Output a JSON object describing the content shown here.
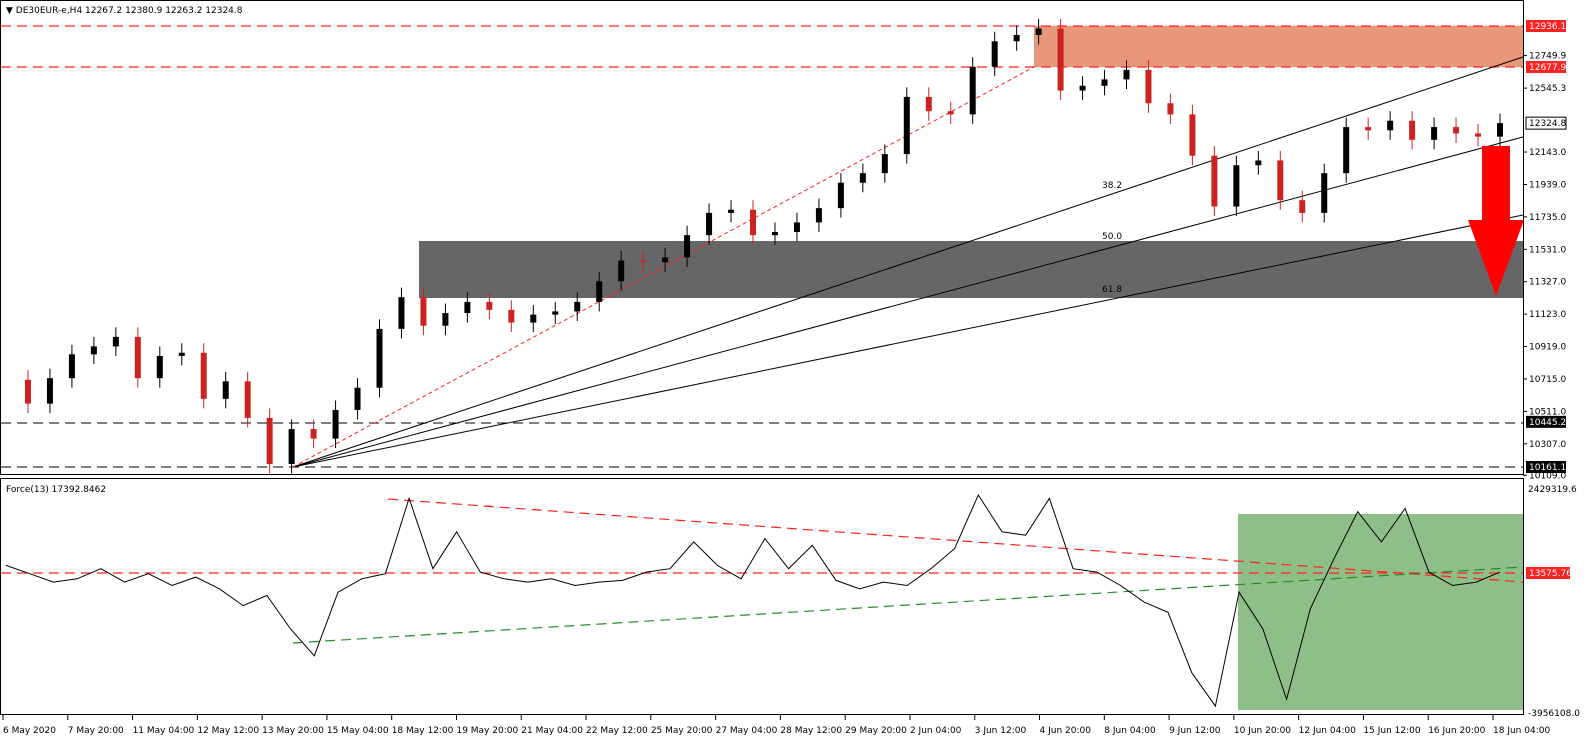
{
  "header": {
    "symbol": "DE30EUR-e,H4",
    "ohlc": "12267.2 12380.9 12263.2 12324.8"
  },
  "indicator": {
    "title": "Force(13) 17392.8462",
    "axis_labels": [
      "2429319.6",
      "13575.76",
      "-3956108.0"
    ]
  },
  "colors": {
    "bull": "#000000",
    "bear": "#cc2222",
    "resistance_zone": "#e8967a",
    "support_zone": "#666666",
    "force_zone": "#8fbf88",
    "arrow": "#ff0000",
    "dashed_red": "#ff2222",
    "dashed_green": "#2a8a2a"
  },
  "chart_data": [
    {
      "type": "candlestick",
      "ylim": [
        10109,
        13000
      ],
      "y_ticks": [
        "12749.9",
        "12545.3",
        "12143.0",
        "11939.0",
        "11735.0",
        "11531.0",
        "11327.0",
        "11123.0",
        "10919.0",
        "10715.0",
        "10511.0",
        "10307.0",
        "10109.0"
      ],
      "x_ticks": [
        "6 May 2020",
        "7 May 20:00",
        "11 May 04:00",
        "12 May 12:00",
        "13 May 20:00",
        "15 May 04:00",
        "18 May 12:00",
        "19 May 20:00",
        "21 May 04:00",
        "22 May 12:00",
        "25 May 20:00",
        "27 May 04:00",
        "28 May 12:00",
        "29 May 20:00",
        "2 Jun 04:00",
        "3 Jun 12:00",
        "4 Jun 20:00",
        "8 Jun 04:00",
        "9 Jun 12:00",
        "10 Jun 20:00",
        "12 Jun 04:00",
        "15 Jun 12:00",
        "16 Jun 20:00",
        "18 Jun 04:00"
      ],
      "levels": [
        {
          "value": 12936.1,
          "label": "12936.1",
          "style": "red-dashed"
        },
        {
          "value": 12677.9,
          "label": "12677.9",
          "style": "red-dashed"
        },
        {
          "value": 10445.2,
          "label": "10445.2",
          "style": "black-dashed"
        },
        {
          "value": 10161.1,
          "label": "10161.1",
          "style": "black-dashed"
        }
      ],
      "current_price": {
        "value": 12324.8,
        "label": "12324.8"
      },
      "zones": [
        {
          "name": "resistance",
          "from": 12677.9,
          "to": 12936.1
        },
        {
          "name": "support",
          "from": 11231,
          "to": 11590
        }
      ],
      "fib_labels": [
        "38.2",
        "50.0",
        "61.8"
      ],
      "close_path": [
        10710,
        10560,
        10720,
        10870,
        10920,
        10980,
        10720,
        10860,
        10880,
        10590,
        10700,
        10470,
        10180,
        10400,
        10340,
        10520,
        10660,
        11030,
        11230,
        11050,
        11130,
        11200,
        11150,
        11070,
        11120,
        11140,
        11200,
        11330,
        11460,
        11450,
        11480,
        11620,
        11760,
        11780,
        11620,
        11640,
        11700,
        11790,
        11950,
        12010,
        12130,
        12490,
        12400,
        12380,
        12680,
        12840,
        12880,
        12920,
        12530,
        12560,
        12600,
        12660,
        12450,
        12380,
        12120,
        11800,
        12060,
        12090,
        11840,
        11760,
        12010,
        12300,
        12280,
        12340,
        12220,
        12300,
        12260,
        12240,
        12324.8
      ]
    },
    {
      "type": "line",
      "name": "Force(13)",
      "ylim": [
        -3956108.0,
        2429319.6
      ],
      "values": [
        300000,
        50000,
        -200000,
        -100000,
        200000,
        -200000,
        50000,
        -300000,
        -50000,
        -400000,
        -900000,
        -600000,
        -1600000,
        -2400000,
        -500000,
        -100000,
        50000,
        2300000,
        200000,
        1300000,
        100000,
        -100000,
        -200000,
        -100000,
        -300000,
        -200000,
        -150000,
        100000,
        200000,
        1000000,
        300000,
        -100000,
        1100000,
        200000,
        900000,
        -150000,
        -400000,
        -200000,
        -300000,
        200000,
        800000,
        2400000,
        1300000,
        1200000,
        2300000,
        200000,
        100000,
        -300000,
        -800000,
        -1100000,
        -2900000,
        -3900000,
        -500000,
        -1600000,
        -3700000,
        -1000000,
        500000,
        1900000,
        1000000,
        2000000,
        100000,
        -300000,
        -200000,
        100000
      ],
      "trendlines": [
        "red-dashed-descending",
        "green-dashed-ascending"
      ],
      "level": {
        "value": 13575.76,
        "label": "13575.76"
      }
    }
  ]
}
